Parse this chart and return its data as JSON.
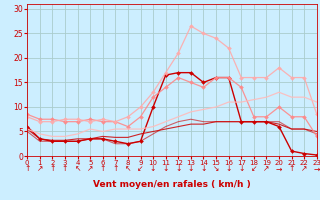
{
  "xlabel": "Vent moyen/en rafales ( km/h )",
  "background_color": "#cceeff",
  "grid_color": "#aacccc",
  "x_ticks": [
    0,
    1,
    2,
    3,
    4,
    5,
    6,
    7,
    8,
    9,
    10,
    11,
    12,
    13,
    14,
    15,
    16,
    17,
    18,
    19,
    20,
    21,
    22,
    23
  ],
  "y_ticks": [
    0,
    5,
    10,
    15,
    20,
    25,
    30
  ],
  "ylim": [
    0,
    31
  ],
  "xlim": [
    0,
    23
  ],
  "lines": [
    {
      "y": [
        6,
        3.5,
        3,
        3,
        3,
        3.5,
        3.5,
        3,
        2.5,
        3,
        10,
        16.5,
        17,
        17,
        15,
        16,
        16,
        7,
        7,
        7,
        6,
        1,
        0.5,
        0.2
      ],
      "color": "#cc0000",
      "linewidth": 1.0,
      "marker": "D",
      "markersize": 2.0,
      "alpha": 1.0
    },
    {
      "y": [
        5.5,
        3.5,
        3.2,
        3.2,
        3.5,
        3.5,
        4,
        3.8,
        3.8,
        4.5,
        5,
        5.5,
        6,
        6.5,
        6.5,
        7,
        7,
        7,
        7,
        7,
        6.5,
        5.5,
        5.5,
        5
      ],
      "color": "#cc0000",
      "linewidth": 0.8,
      "marker": null,
      "markersize": 0,
      "alpha": 0.85
    },
    {
      "y": [
        5,
        3,
        3,
        3,
        3,
        3.5,
        3.5,
        2.5,
        2.5,
        3,
        4.5,
        6,
        7,
        7.5,
        7,
        7,
        7,
        7,
        7,
        7,
        7,
        5.5,
        5.5,
        4.5
      ],
      "color": "#cc0000",
      "linewidth": 0.8,
      "marker": null,
      "markersize": 0,
      "alpha": 0.6
    },
    {
      "y": [
        8.5,
        7.5,
        7.5,
        7,
        7,
        7.5,
        7,
        7,
        6,
        8,
        12,
        14,
        16,
        15,
        14,
        16,
        16,
        14,
        8,
        8,
        10,
        8,
        8,
        4
      ],
      "color": "#ff8888",
      "linewidth": 0.9,
      "marker": "D",
      "markersize": 2.0,
      "alpha": 0.9
    },
    {
      "y": [
        8,
        7,
        7,
        7.5,
        7.5,
        7,
        7.5,
        7,
        8,
        10,
        13,
        17,
        21,
        26.5,
        25,
        24,
        22,
        16,
        16,
        16,
        18,
        16,
        16,
        8.5
      ],
      "color": "#ffaaaa",
      "linewidth": 0.9,
      "marker": "D",
      "markersize": 2.0,
      "alpha": 0.9
    },
    {
      "y": [
        5.5,
        4.5,
        4,
        4,
        4.5,
        5.5,
        5,
        5.5,
        5.5,
        5.5,
        6,
        7,
        8,
        9,
        9.5,
        10,
        11,
        11,
        11.5,
        12,
        13,
        12,
        12,
        11
      ],
      "color": "#ffbbbb",
      "linewidth": 0.9,
      "marker": null,
      "markersize": 0,
      "alpha": 0.9
    }
  ],
  "arrows": [
    "↑",
    "↗",
    "↑",
    "↑",
    "↖",
    "↗",
    "↑",
    "↑",
    "↖",
    "↙",
    "↓",
    "↓",
    "↓",
    "↓",
    "↓",
    "↘",
    "↓",
    "↓",
    "↙",
    "↗",
    "→",
    "↑",
    "↗",
    "→"
  ]
}
